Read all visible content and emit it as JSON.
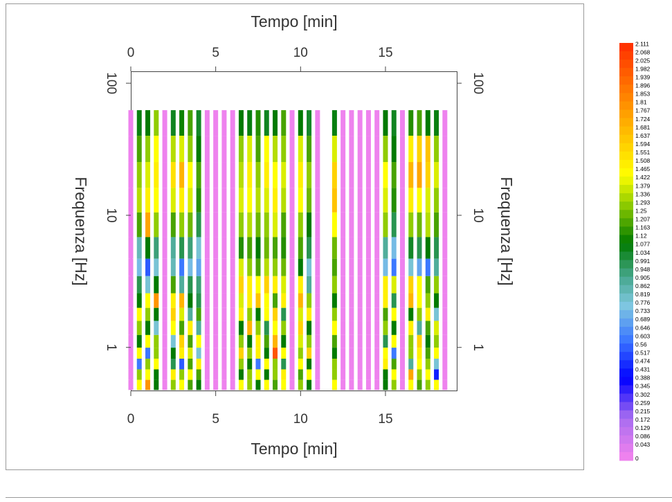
{
  "chart_data": {
    "type": "heatmap",
    "x_label": "Tempo [min]",
    "y_label": "Frequenza [Hz]",
    "xlim": [
      0,
      19.2
    ],
    "xticks": [
      0,
      5,
      10,
      15
    ],
    "ylim": [
      0.466,
      123
    ],
    "yticks": [
      1,
      10,
      100
    ],
    "y_scale": "log",
    "x": [
      0,
      0.5,
      1,
      1.5,
      2,
      2.5,
      3,
      3.5,
      4,
      4.5,
      5,
      5.5,
      6,
      6.5,
      7,
      7.5,
      8,
      8.5,
      9,
      9.5,
      10,
      10.5,
      11,
      11.5,
      12,
      12.5,
      13,
      13.5,
      14,
      14.5,
      15,
      15.5,
      16,
      16.5,
      17,
      17.5,
      18,
      18.5
    ],
    "y": [
      50,
      32,
      20,
      13,
      8.5,
      5.5,
      4,
      3,
      2.2,
      1.8,
      1.4,
      1.1,
      0.9,
      0.75,
      0.62,
      0.52
    ],
    "z": [
      [
        0,
        1.08,
        1.1,
        1.3,
        0,
        1.06,
        1.12,
        1.2,
        1.05,
        0,
        0,
        0,
        0,
        1.1,
        1.08,
        1.15,
        1.06,
        1.1,
        1.2,
        0,
        1.1,
        1.05,
        0,
        null,
        1.08,
        0,
        0,
        0,
        0,
        0,
        1.1,
        1.06,
        0,
        1.15,
        1.2,
        1.1,
        1.08,
        0
      ],
      [
        0,
        1.2,
        1.3,
        1.45,
        0,
        1.35,
        1.4,
        1.3,
        1.1,
        0,
        0,
        0,
        0,
        1.3,
        1.4,
        1.2,
        1.45,
        1.35,
        1.3,
        0,
        1.4,
        1.2,
        0,
        null,
        1.4,
        0,
        0,
        0,
        0,
        0,
        1.3,
        1.1,
        0,
        1.5,
        1.6,
        1.65,
        1.3,
        0
      ],
      [
        0,
        1.3,
        1.4,
        1.5,
        0,
        1.55,
        1.7,
        1.45,
        1.2,
        0,
        0,
        0,
        0,
        1.35,
        1.5,
        1.3,
        1.5,
        1.45,
        1.4,
        0,
        1.5,
        1.3,
        0,
        null,
        1.6,
        0,
        0,
        0,
        0,
        0,
        1.45,
        1.2,
        0,
        1.7,
        1.75,
        1.6,
        1.4,
        0
      ],
      [
        0,
        1.35,
        1.5,
        1.45,
        0,
        1.4,
        1.5,
        1.4,
        1.15,
        0,
        0,
        0,
        0,
        1.4,
        1.45,
        1.35,
        1.4,
        1.5,
        1.35,
        0,
        1.45,
        1.25,
        0,
        null,
        1.65,
        0,
        0,
        0,
        0,
        0,
        1.4,
        1.15,
        0,
        1.5,
        1.45,
        1.4,
        1.3,
        0
      ],
      [
        0,
        1.2,
        1.75,
        1.3,
        0,
        1.2,
        1.3,
        1.25,
        1.0,
        0,
        0,
        0,
        0,
        1.3,
        1.35,
        1.25,
        1.3,
        1.4,
        1.2,
        0,
        1.3,
        1.1,
        0,
        null,
        1.45,
        0,
        0,
        0,
        0,
        0,
        1.3,
        1.0,
        0,
        1.3,
        1.25,
        1.35,
        1.2,
        0
      ],
      [
        0,
        0.85,
        1.1,
        0.95,
        0,
        0.9,
        1.0,
        0.95,
        0.8,
        0,
        0,
        0,
        0,
        1.15,
        1.2,
        1.1,
        1.25,
        1.2,
        1.15,
        0,
        1.2,
        1.0,
        0,
        null,
        1.25,
        0,
        0,
        0,
        0,
        0,
        0.9,
        0.75,
        0,
        1.05,
        1.0,
        1.1,
        1.0,
        0
      ],
      [
        0,
        0.75,
        0.55,
        0.8,
        0,
        0.85,
        0.6,
        0.75,
        0.7,
        0,
        0,
        0,
        0,
        1.4,
        1.3,
        1.2,
        1.35,
        1.3,
        1.25,
        0,
        1.1,
        0.8,
        0,
        null,
        1.2,
        0,
        0,
        0,
        0,
        0,
        0.75,
        0.6,
        0,
        0.8,
        0.7,
        0.6,
        0.9,
        0
      ],
      [
        0,
        1.0,
        0.8,
        1.1,
        0,
        1.2,
        0.9,
        1.0,
        0.95,
        0,
        0,
        0,
        0,
        1.6,
        1.5,
        1.45,
        1.6,
        1.5,
        1.4,
        0,
        1.5,
        0.9,
        0,
        null,
        1.3,
        0,
        0,
        0,
        0,
        0,
        1.5,
        1.4,
        0,
        1.6,
        1.45,
        1.2,
        1.3,
        0
      ],
      [
        0,
        1.1,
        1.45,
        1.8,
        0,
        1.5,
        1.7,
        1.1,
        1.0,
        0,
        0,
        0,
        0,
        1.4,
        1.5,
        1.65,
        1.45,
        1.2,
        1.5,
        0,
        1.7,
        1.3,
        0,
        null,
        1.1,
        0,
        0,
        0,
        0,
        0,
        1.5,
        1.0,
        0,
        1.7,
        1.45,
        1.3,
        1.1,
        0
      ],
      [
        0,
        1.45,
        1.3,
        1.1,
        0,
        1.6,
        1.4,
        0.9,
        1.2,
        0,
        0,
        0,
        0,
        1.5,
        1.3,
        1.1,
        1.45,
        1.6,
        1.0,
        0,
        1.4,
        1.5,
        0,
        null,
        1.3,
        0,
        0,
        0,
        0,
        0,
        1.2,
        1.45,
        0,
        1.1,
        1.3,
        1.5,
        0.8,
        0
      ],
      [
        0,
        1.3,
        1.1,
        0.8,
        0,
        1.45,
        1.2,
        1.5,
        0.9,
        0,
        0,
        0,
        0,
        1.1,
        1.7,
        1.3,
        1.0,
        1.45,
        1.3,
        0,
        1.6,
        1.1,
        0,
        null,
        1.45,
        0,
        0,
        0,
        0,
        0,
        1.3,
        1.1,
        0,
        1.5,
        0.9,
        1.2,
        1.4,
        0
      ],
      [
        0,
        1.1,
        1.45,
        1.3,
        0,
        0.8,
        1.6,
        1.2,
        1.45,
        0,
        0,
        0,
        0,
        1.3,
        1.1,
        1.5,
        1.2,
        1.7,
        1.1,
        0,
        1.4,
        1.3,
        0,
        null,
        1.2,
        0,
        0,
        0,
        0,
        0,
        1.0,
        1.45,
        0,
        1.3,
        1.6,
        1.1,
        1.3,
        0
      ],
      [
        0,
        1.45,
        0.6,
        1.3,
        0,
        1.1,
        1.5,
        1.4,
        0.8,
        0,
        0,
        0,
        0,
        1.6,
        1.3,
        1.5,
        1.1,
        2.0,
        1.45,
        0,
        1.3,
        1.6,
        0,
        null,
        1.1,
        0,
        0,
        0,
        0,
        0,
        1.45,
        0.6,
        0,
        1.3,
        1.5,
        1.2,
        1.45,
        0
      ],
      [
        0,
        0.6,
        1.3,
        1.45,
        0,
        1.0,
        0.55,
        1.2,
        1.5,
        0,
        0,
        0,
        0,
        1.3,
        1.1,
        0.6,
        1.45,
        1.3,
        1.0,
        0,
        1.45,
        1.1,
        0,
        null,
        1.3,
        0,
        0,
        0,
        0,
        0,
        1.5,
        1.2,
        0,
        0.9,
        1.45,
        1.3,
        0.8,
        0
      ],
      [
        0,
        1.3,
        1.45,
        1.1,
        0,
        1.5,
        1.3,
        1.45,
        1.2,
        0,
        0,
        0,
        0,
        1.1,
        1.3,
        1.45,
        1.1,
        1.3,
        1.5,
        0,
        1.2,
        1.45,
        0,
        null,
        1.3,
        0,
        0,
        0,
        0,
        0,
        1.1,
        1.45,
        0,
        1.75,
        1.3,
        1.45,
        0.45,
        0
      ],
      [
        0,
        1.45,
        1.8,
        1.1,
        0,
        1.3,
        1.45,
        1.2,
        1.1,
        0,
        0,
        0,
        0,
        1.45,
        1.3,
        1.1,
        1.45,
        1.2,
        1.45,
        0,
        1.3,
        1.1,
        0,
        null,
        1.45,
        0,
        0,
        0,
        0,
        0,
        1.1,
        1.3,
        0,
        1.45,
        1.2,
        1.3,
        1.45,
        0
      ]
    ],
    "colorscale": [
      [
        0,
        "#ee82ee"
      ],
      [
        0.2,
        "#a66cf0"
      ],
      [
        0.4,
        "#0000ff"
      ],
      [
        0.6,
        "#3c78ff"
      ],
      [
        0.78,
        "#80c8e0"
      ],
      [
        0.92,
        "#48a890"
      ],
      [
        1.1,
        "#007a00"
      ],
      [
        1.3,
        "#90cc00"
      ],
      [
        1.45,
        "#ffff00"
      ],
      [
        1.75,
        "#ffa500"
      ],
      [
        2.111,
        "#ff3300"
      ]
    ],
    "colorbar_ticks": [
      2.111,
      2.068,
      2.025,
      1.982,
      1.939,
      1.896,
      1.853,
      1.81,
      1.767,
      1.724,
      1.681,
      1.637,
      1.594,
      1.551,
      1.508,
      1.465,
      1.422,
      1.379,
      1.336,
      1.293,
      1.25,
      1.207,
      1.163,
      1.12,
      1.077,
      1.034,
      0.991,
      0.948,
      0.905,
      0.862,
      0.819,
      0.776,
      0.733,
      0.689,
      0.646,
      0.603,
      0.56,
      0.517,
      0.474,
      0.431,
      0.388,
      0.345,
      0.302,
      0.259,
      0.215,
      0.172,
      0.129,
      0.086,
      0.043,
      0
    ]
  }
}
